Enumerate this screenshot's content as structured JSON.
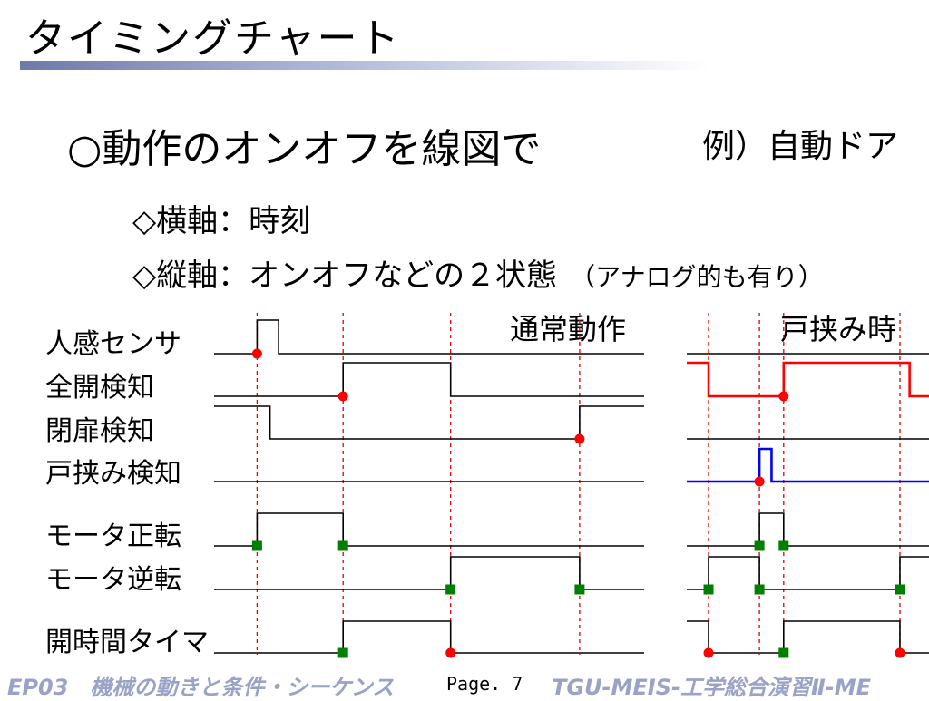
{
  "slide": {
    "title": "タイミングチャート",
    "heading": "○動作のオンオフを線図で",
    "example": "例）自動ドア",
    "bullets": [
      {
        "text": "◇横軸：時刻",
        "note": ""
      },
      {
        "text": "◇縦軸：オンオフなどの２状態",
        "note": "（アナログ的も有り）"
      }
    ],
    "section_labels": {
      "normal": "通常動作",
      "pinch": "戸挟み時"
    },
    "footer": {
      "left": "EP03　機械の動きと条件・シーケンス",
      "page": "Page. 7",
      "right": "TGU-MEIS-工学総合演習Ⅱ-ME"
    }
  },
  "chart_data": [
    {
      "type": "timing",
      "title": "通常動作",
      "x_range": [
        0,
        100
      ],
      "signals": [
        {
          "name": "人感センサ",
          "initial": 0,
          "transitions": [
            [
              10,
              1
            ],
            [
              15,
              0
            ]
          ],
          "color": "#000000"
        },
        {
          "name": "全開検知",
          "initial": 0,
          "transitions": [
            [
              30,
              1
            ],
            [
              55,
              0
            ]
          ],
          "color": "#000000"
        },
        {
          "name": "閉扉検知",
          "initial": 1,
          "transitions": [
            [
              13,
              0
            ],
            [
              85,
              1
            ]
          ],
          "color": "#000000"
        },
        {
          "name": "戸挟み検知",
          "initial": 0,
          "transitions": [],
          "color": "#000000"
        },
        {
          "name": "モータ正転",
          "initial": 0,
          "transitions": [
            [
              10,
              1
            ],
            [
              30,
              0
            ]
          ],
          "color": "#000000"
        },
        {
          "name": "モータ逆転",
          "initial": 0,
          "transitions": [
            [
              55,
              1
            ],
            [
              85,
              0
            ]
          ],
          "color": "#000000"
        },
        {
          "name": "開時間タイマ",
          "initial": 0,
          "transitions": [
            [
              30,
              1
            ],
            [
              55,
              0
            ]
          ],
          "color": "#000000"
        }
      ],
      "event_lines": [
        10,
        30,
        55,
        85
      ],
      "markers": [
        {
          "signal": "人感センサ",
          "t": 10,
          "shape": "circle",
          "color": "#ff0000"
        },
        {
          "signal": "全開検知",
          "t": 30,
          "shape": "circle",
          "color": "#ff0000"
        },
        {
          "signal": "閉扉検知",
          "t": 85,
          "shape": "circle",
          "color": "#ff0000"
        },
        {
          "signal": "モータ正転",
          "t": 10,
          "shape": "square",
          "color": "#008000"
        },
        {
          "signal": "モータ正転",
          "t": 30,
          "shape": "square",
          "color": "#008000"
        },
        {
          "signal": "モータ逆転",
          "t": 55,
          "shape": "square",
          "color": "#008000"
        },
        {
          "signal": "モータ逆転",
          "t": 85,
          "shape": "square",
          "color": "#008000"
        },
        {
          "signal": "開時間タイマ",
          "t": 30,
          "shape": "square",
          "color": "#008000"
        },
        {
          "signal": "開時間タイマ",
          "t": 55,
          "shape": "circle",
          "color": "#ff0000"
        }
      ]
    },
    {
      "type": "timing",
      "title": "戸挟み時",
      "x_range": [
        0,
        100
      ],
      "signals": [
        {
          "name": "人感センサ",
          "initial": 0,
          "transitions": [],
          "color": "#000000"
        },
        {
          "name": "全開検知",
          "initial": 1,
          "transitions": [
            [
              9,
              0
            ],
            [
              40,
              1
            ],
            [
              92,
              0
            ]
          ],
          "color": "#ff0000"
        },
        {
          "name": "閉扉検知",
          "initial": 0,
          "transitions": [],
          "color": "#000000"
        },
        {
          "name": "戸挟み検知",
          "initial": 0,
          "transitions": [
            [
              30,
              1
            ],
            [
              35,
              0
            ]
          ],
          "color": "#0000ff"
        },
        {
          "name": "モータ正転",
          "initial": 0,
          "transitions": [
            [
              30,
              1
            ],
            [
              40,
              0
            ]
          ],
          "color": "#000000"
        },
        {
          "name": "モータ逆転",
          "initial": 0,
          "transitions": [
            [
              9,
              1
            ],
            [
              30,
              0
            ],
            [
              88,
              1
            ]
          ],
          "color": "#000000"
        },
        {
          "name": "開時間タイマ",
          "initial": 1,
          "transitions": [
            [
              9,
              0
            ],
            [
              40,
              1
            ],
            [
              88,
              0
            ]
          ],
          "color": "#000000"
        }
      ],
      "event_lines": [
        9,
        30,
        40,
        88
      ],
      "markers": [
        {
          "signal": "全開検知",
          "t": 40,
          "shape": "circle",
          "color": "#ff0000"
        },
        {
          "signal": "戸挟み検知",
          "t": 30,
          "shape": "circle",
          "color": "#ff0000"
        },
        {
          "signal": "モータ正転",
          "t": 30,
          "shape": "square",
          "color": "#008000"
        },
        {
          "signal": "モータ正転",
          "t": 40,
          "shape": "square",
          "color": "#008000"
        },
        {
          "signal": "モータ逆転",
          "t": 9,
          "shape": "square",
          "color": "#008000"
        },
        {
          "signal": "モータ逆転",
          "t": 30,
          "shape": "square",
          "color": "#008000"
        },
        {
          "signal": "モータ逆転",
          "t": 88,
          "shape": "square",
          "color": "#008000"
        },
        {
          "signal": "開時間タイマ",
          "t": 9,
          "shape": "circle",
          "color": "#ff0000"
        },
        {
          "signal": "開時間タイマ",
          "t": 40,
          "shape": "square",
          "color": "#008000"
        },
        {
          "signal": "開時間タイマ",
          "t": 88,
          "shape": "circle",
          "color": "#ff0000"
        }
      ]
    }
  ]
}
